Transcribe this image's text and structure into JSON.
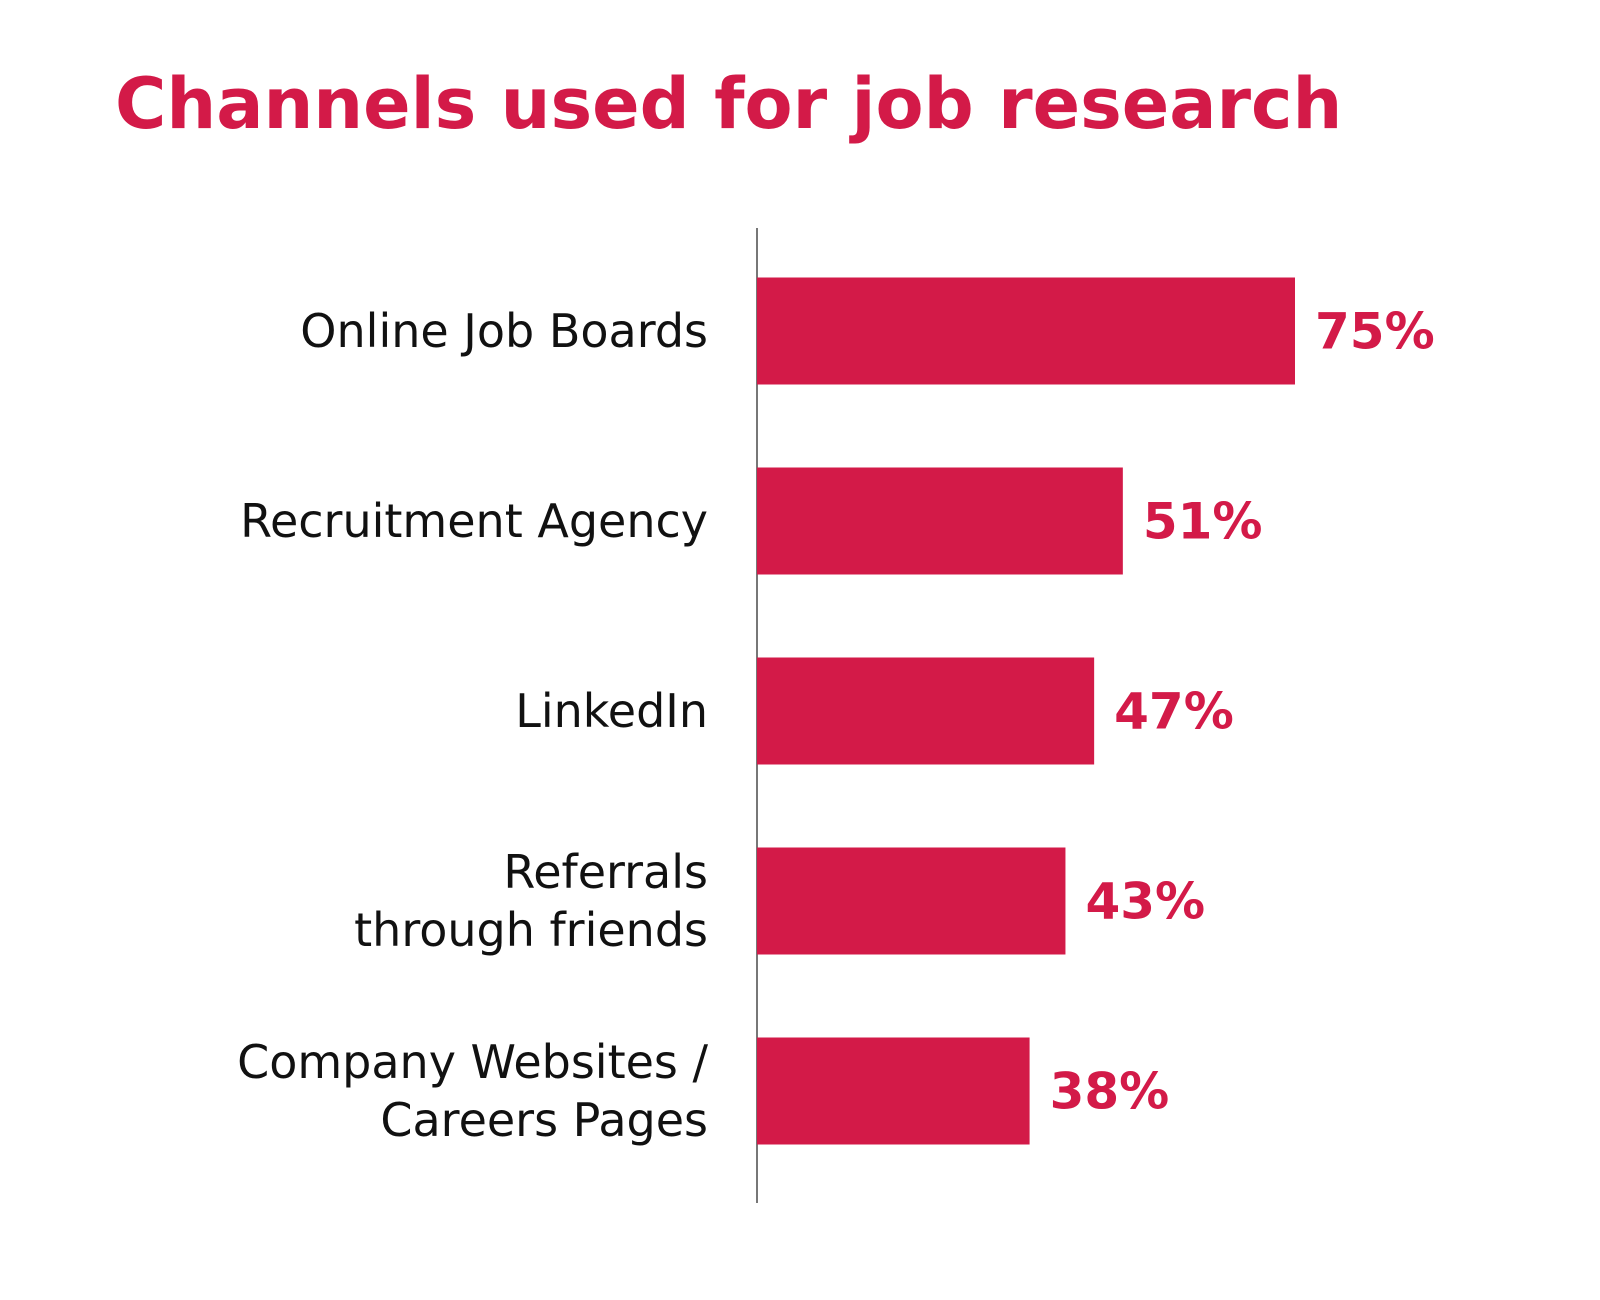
{
  "chart_data": {
    "type": "bar",
    "orientation": "horizontal",
    "title": "Channels used for job research",
    "categories": [
      "Online Job Boards",
      "Recruitment Agency",
      "LinkedIn",
      "Referrals\nthrough friends",
      "Company Websites /\nCareers Pages"
    ],
    "values": [
      75,
      51,
      47,
      43,
      38
    ],
    "value_labels": [
      "75%",
      "51%",
      "47%",
      "43%",
      "38%"
    ],
    "color": "#d31a48"
  }
}
